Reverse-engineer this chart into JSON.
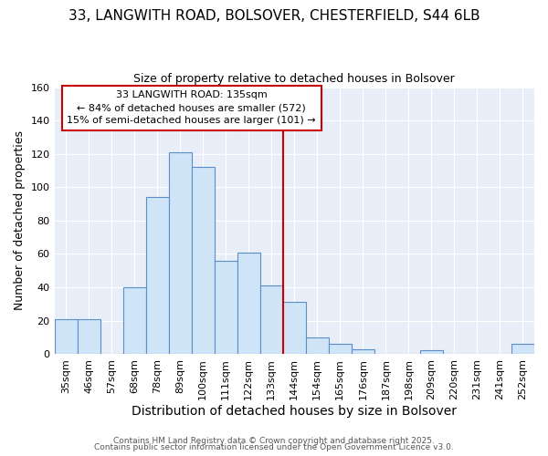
{
  "title_line1": "33, LANGWITH ROAD, BOLSOVER, CHESTERFIELD, S44 6LB",
  "title_line2": "Size of property relative to detached houses in Bolsover",
  "xlabel": "Distribution of detached houses by size in Bolsover",
  "ylabel": "Number of detached properties",
  "categories": [
    "35sqm",
    "46sqm",
    "57sqm",
    "68sqm",
    "78sqm",
    "89sqm",
    "100sqm",
    "111sqm",
    "122sqm",
    "133sqm",
    "144sqm",
    "154sqm",
    "165sqm",
    "176sqm",
    "187sqm",
    "198sqm",
    "209sqm",
    "220sqm",
    "231sqm",
    "241sqm",
    "252sqm"
  ],
  "values": [
    21,
    21,
    0,
    40,
    94,
    121,
    112,
    56,
    61,
    41,
    31,
    10,
    6,
    3,
    0,
    0,
    2,
    0,
    0,
    0,
    6
  ],
  "bar_color": "#d0e4f7",
  "bar_edge_color": "#5b8ec9",
  "vline_color": "#cc0000",
  "annotation_line1": "33 LANGWITH ROAD: 135sqm",
  "annotation_line2": "← 84% of detached houses are smaller (572)",
  "annotation_line3": "15% of semi-detached houses are larger (101) →",
  "annotation_box_facecolor": "#ffffff",
  "annotation_box_edgecolor": "#cc0000",
  "ylim": [
    0,
    160
  ],
  "yticks": [
    0,
    20,
    40,
    60,
    80,
    100,
    120,
    140,
    160
  ],
  "footer_line1": "Contains HM Land Registry data © Crown copyright and database right 2025.",
  "footer_line2": "Contains public sector information licensed under the Open Government Licence v3.0.",
  "fig_background": "#ffffff",
  "plot_background": "#e8eef8",
  "grid_color": "#ffffff",
  "title_fontsize": 11,
  "subtitle_fontsize": 9,
  "ylabel_fontsize": 9,
  "xlabel_fontsize": 10,
  "tick_fontsize": 8,
  "annotation_fontsize": 8,
  "footer_fontsize": 6.5
}
